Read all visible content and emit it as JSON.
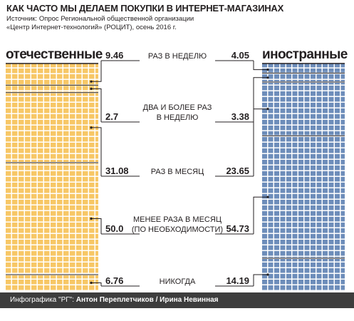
{
  "header": {
    "title": "КАК ЧАСТО МЫ ДЕЛАЕМ ПОКУПКИ В ИНТЕРНЕТ-МАГАЗИНАХ",
    "source_line1": "Источник: Опрос Региональной общественной организации",
    "source_line2": "«Центр Интернет-технологий» (РОЦИТ), осень 2016 г."
  },
  "footer": {
    "prefix": "Инфографика \"РГ\": ",
    "authors": "Антон Переплетчиков / Ирина Невинная"
  },
  "colors": {
    "domestic": "#f7c766",
    "foreign": "#6d8dba",
    "divider": "#231f20",
    "footer_bg": "#3d3d3d"
  },
  "chart_data": {
    "type": "bar",
    "orientation": "stacked-vertical",
    "unit": "%",
    "categories": [
      [
        "РАЗ В НЕДЕЛЮ"
      ],
      [
        "ДВА И БОЛЕЕ РАЗ",
        "В НЕДЕЛЮ"
      ],
      [
        "РАЗ В МЕСЯЦ"
      ],
      [
        "МЕНЕЕ РАЗА В МЕСЯЦ",
        "(ПО НЕОБХОДИМОСТИ)"
      ],
      [
        "НИКОГДА"
      ]
    ],
    "series": [
      {
        "name": "отечественные",
        "values": [
          9.46,
          2.7,
          31.08,
          50.0,
          6.76
        ]
      },
      {
        "name": "иностранные",
        "values": [
          4.05,
          3.38,
          23.65,
          54.73,
          14.19
        ]
      }
    ],
    "value_labels": [
      [
        "9.46",
        "2.7",
        "31.08",
        "50.0",
        "6.76"
      ],
      [
        "4.05",
        "3.38",
        "23.65",
        "54.73",
        "14.19"
      ]
    ]
  }
}
